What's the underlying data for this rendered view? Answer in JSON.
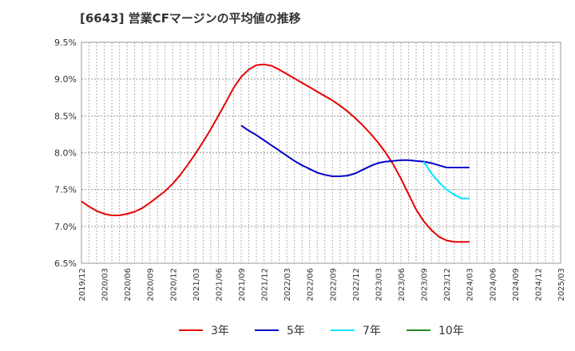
{
  "chart_data": {
    "type": "line",
    "title": "[6643]  営業CFマージンの平均値の推移",
    "xlabel": "",
    "ylabel": "",
    "ylim": [
      6.5,
      9.5
    ],
    "grid": true,
    "legend_position": "bottom",
    "y_ticks": [
      "9.5%",
      "9.0%",
      "8.5%",
      "8.0%",
      "7.5%",
      "7.0%",
      "6.5%"
    ],
    "y_tick_values": [
      9.5,
      9.0,
      8.5,
      8.0,
      7.5,
      7.0,
      6.5
    ],
    "x_ticks": [
      "2019/12",
      "2020/03",
      "2020/06",
      "2020/09",
      "2020/12",
      "2021/03",
      "2021/06",
      "2021/09",
      "2021/12",
      "2022/03",
      "2022/06",
      "2022/09",
      "2022/12",
      "2023/03",
      "2023/06",
      "2023/09",
      "2023/12",
      "2024/03",
      "2024/06",
      "2024/09",
      "2024/12",
      "2025/03"
    ],
    "series": [
      {
        "name": "3年",
        "color": "#e60000",
        "x": [
          "2019/12",
          "2020/01",
          "2020/02",
          "2020/03",
          "2020/04",
          "2020/05",
          "2020/06",
          "2020/07",
          "2020/08",
          "2020/09",
          "2020/10",
          "2020/11",
          "2020/12",
          "2021/01",
          "2021/02",
          "2021/03",
          "2021/04",
          "2021/05",
          "2021/06",
          "2021/07",
          "2021/08",
          "2021/09",
          "2021/10",
          "2021/11",
          "2021/12",
          "2022/01",
          "2022/02",
          "2022/03",
          "2022/04",
          "2022/05",
          "2022/06",
          "2022/07",
          "2022/08",
          "2022/09",
          "2022/10",
          "2022/11",
          "2022/12",
          "2023/01",
          "2023/02",
          "2023/03",
          "2023/04",
          "2023/05",
          "2023/06",
          "2023/07",
          "2023/08",
          "2023/09",
          "2023/10",
          "2023/11",
          "2023/12",
          "2024/01",
          "2024/02",
          "2024/03"
        ],
        "values": [
          7.34,
          7.27,
          7.21,
          7.17,
          7.15,
          7.15,
          7.17,
          7.2,
          7.25,
          7.32,
          7.4,
          7.48,
          7.58,
          7.7,
          7.84,
          7.99,
          8.15,
          8.32,
          8.5,
          8.69,
          8.88,
          9.03,
          9.13,
          9.19,
          9.2,
          9.18,
          9.13,
          9.07,
          9.01,
          8.95,
          8.89,
          8.83,
          8.77,
          8.71,
          8.64,
          8.56,
          8.47,
          8.37,
          8.26,
          8.14,
          8.0,
          7.84,
          7.65,
          7.44,
          7.23,
          7.07,
          6.95,
          6.86,
          6.81,
          6.79,
          6.79,
          6.79
        ]
      },
      {
        "name": "5年",
        "color": "#0000c8",
        "x": [
          "2021/09",
          "2021/10",
          "2021/11",
          "2021/12",
          "2022/01",
          "2022/02",
          "2022/03",
          "2022/04",
          "2022/05",
          "2022/06",
          "2022/07",
          "2022/08",
          "2022/09",
          "2022/10",
          "2022/11",
          "2022/12",
          "2023/01",
          "2023/02",
          "2023/03",
          "2023/04",
          "2023/05",
          "2023/06",
          "2023/07",
          "2023/08",
          "2023/09",
          "2023/10",
          "2023/11",
          "2023/12",
          "2024/01",
          "2024/02",
          "2024/03"
        ],
        "values": [
          8.37,
          8.3,
          8.24,
          8.17,
          8.1,
          8.03,
          7.96,
          7.89,
          7.83,
          7.78,
          7.73,
          7.7,
          7.68,
          7.68,
          7.69,
          7.72,
          7.77,
          7.82,
          7.86,
          7.88,
          7.89,
          7.9,
          7.9,
          7.89,
          7.88,
          7.86,
          7.83,
          7.8,
          7.8,
          7.8,
          7.8
        ]
      },
      {
        "name": "7年",
        "color": "#00e5ff",
        "x": [
          "2023/09",
          "2023/10",
          "2023/11",
          "2023/12",
          "2024/01",
          "2024/02",
          "2024/03"
        ],
        "values": [
          7.88,
          7.72,
          7.6,
          7.5,
          7.43,
          7.38,
          7.38
        ]
      },
      {
        "name": "10年",
        "color": "#228b22",
        "x": [],
        "values": []
      }
    ]
  }
}
